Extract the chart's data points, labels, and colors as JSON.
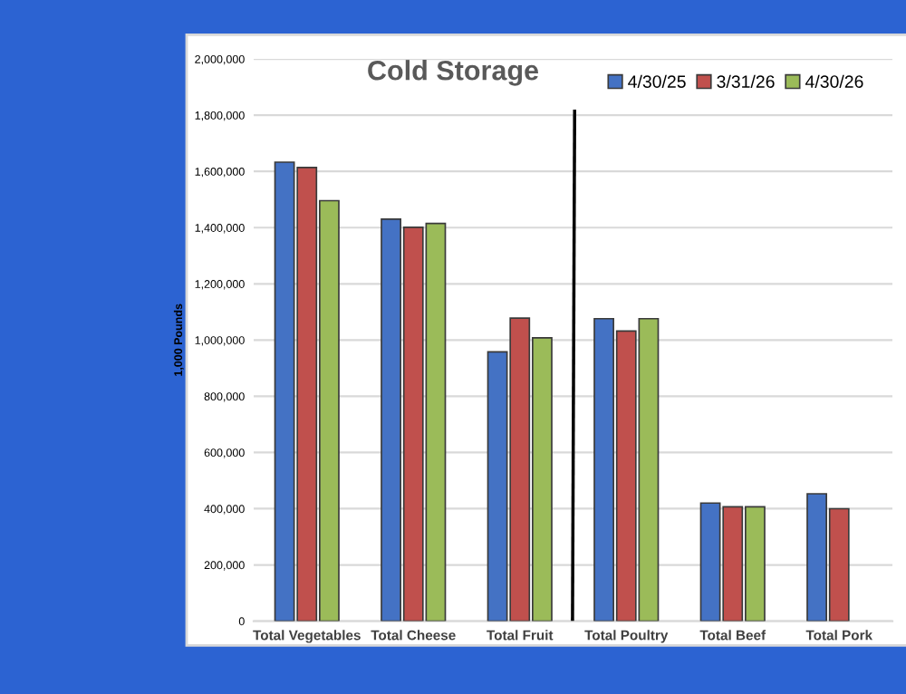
{
  "chart_data": {
    "type": "bar",
    "title": "Cold Storage",
    "ylabel": "1,000 Pounds",
    "categories": [
      "Total Vegetables",
      "Total Cheese",
      "Total Fruit",
      "Total Poultry",
      "Total Beef",
      "Total Pork"
    ],
    "series": [
      {
        "name": "4/30/25",
        "color": "#4472c4",
        "values": [
          1633000,
          1430000,
          958000,
          1076000,
          420000,
          453000
        ]
      },
      {
        "name": "3/31/26",
        "color": "#c0504d",
        "values": [
          1614000,
          1401000,
          1078000,
          1032000,
          407000,
          400000
        ]
      },
      {
        "name": "4/30/26",
        "color": "#9bbb59",
        "values": [
          1496000,
          1415000,
          1008000,
          1076000,
          407000,
          null
        ]
      }
    ],
    "ylim": [
      0,
      2000000
    ],
    "yticks": [
      {
        "value": 0,
        "label": "0"
      },
      {
        "value": 200000,
        "label": "200,000"
      },
      {
        "value": 400000,
        "label": "400,000"
      },
      {
        "value": 600000,
        "label": "600,000"
      },
      {
        "value": 800000,
        "label": "800,000"
      },
      {
        "value": 1000000,
        "label": "1,000,000"
      },
      {
        "value": 1200000,
        "label": "1,200,000"
      },
      {
        "value": 1400000,
        "label": "1,400,000"
      },
      {
        "value": 1600000,
        "label": "1,600,000"
      },
      {
        "value": 1800000,
        "label": "1,800,000"
      },
      {
        "value": 2000000,
        "label": "2,000,000"
      }
    ],
    "grid": "y",
    "legend": "top right"
  }
}
